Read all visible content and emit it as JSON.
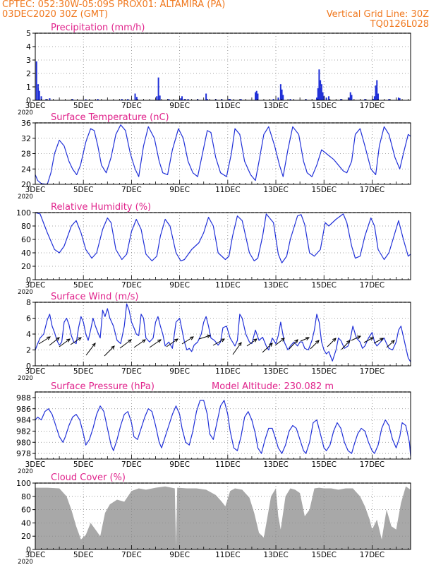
{
  "colors": {
    "header": "#f0781e",
    "panel_title": "#e0248c",
    "series": "#2030d8",
    "cloud": "#a8a8a8",
    "grid": "#888888",
    "frame": "#000000"
  },
  "header": {
    "left_line1": "CPTEC:   052:30W-05:09S   PROX01: ALTAMIRA (PA)",
    "left_line2": "03DEC2020 30Z (GMT)",
    "right_line1": "Vertical Grid Line: 30Z",
    "right_line2": "TQ0126L028"
  },
  "x_axis": {
    "day_start": 3,
    "day_end": 18.6,
    "ticks": [
      {
        "day": 3,
        "label": "3DEC"
      },
      {
        "day": 5,
        "label": "5DEC"
      },
      {
        "day": 7,
        "label": "7DEC"
      },
      {
        "day": 9,
        "label": "9DEC"
      },
      {
        "day": 11,
        "label": "11DEC"
      },
      {
        "day": 13,
        "label": "13DEC"
      },
      {
        "day": 15,
        "label": "15DEC"
      },
      {
        "day": 17,
        "label": "17DEC"
      }
    ],
    "year_label": "2020"
  },
  "chart_data": [
    {
      "type": "bar",
      "title": "Precipitation (mm/h)",
      "ylabel": "mm/h",
      "ylim": [
        0,
        5
      ],
      "yticks": [
        0,
        1,
        2,
        3,
        4,
        5
      ],
      "bars": [
        {
          "day": 3.05,
          "value": 2.9
        },
        {
          "day": 3.12,
          "value": 1.2
        },
        {
          "day": 3.17,
          "value": 0.7
        },
        {
          "day": 3.25,
          "value": 0.3
        },
        {
          "day": 3.45,
          "value": 0.1
        },
        {
          "day": 3.6,
          "value": 0.15
        },
        {
          "day": 4.55,
          "value": 0.1
        },
        {
          "day": 5.1,
          "value": 0.08
        },
        {
          "day": 5.6,
          "value": 0.1
        },
        {
          "day": 6.6,
          "value": 0.1
        },
        {
          "day": 6.85,
          "value": 0.1
        },
        {
          "day": 7.15,
          "value": 0.5
        },
        {
          "day": 7.22,
          "value": 0.25
        },
        {
          "day": 8.05,
          "value": 0.3
        },
        {
          "day": 8.12,
          "value": 1.7
        },
        {
          "day": 8.18,
          "value": 0.35
        },
        {
          "day": 8.55,
          "value": 0.1
        },
        {
          "day": 9.05,
          "value": 0.15
        },
        {
          "day": 9.1,
          "value": 0.3
        },
        {
          "day": 9.2,
          "value": 0.1
        },
        {
          "day": 9.35,
          "value": 0.1
        },
        {
          "day": 9.75,
          "value": 0.1
        },
        {
          "day": 10.1,
          "value": 0.5
        },
        {
          "day": 10.15,
          "value": 0.1
        },
        {
          "day": 10.5,
          "value": 0.1
        },
        {
          "day": 10.75,
          "value": 0.1
        },
        {
          "day": 11.05,
          "value": 0.1
        },
        {
          "day": 11.1,
          "value": 0.1
        },
        {
          "day": 11.55,
          "value": 0.1
        },
        {
          "day": 12.15,
          "value": 0.6
        },
        {
          "day": 12.2,
          "value": 0.7
        },
        {
          "day": 12.25,
          "value": 0.5
        },
        {
          "day": 12.9,
          "value": 0.1
        },
        {
          "day": 13.1,
          "value": 0.2
        },
        {
          "day": 13.2,
          "value": 1.2
        },
        {
          "day": 13.25,
          "value": 0.8
        },
        {
          "day": 13.3,
          "value": 0.4
        },
        {
          "day": 13.6,
          "value": 0.1
        },
        {
          "day": 14.25,
          "value": 0.1
        },
        {
          "day": 14.7,
          "value": 0.2
        },
        {
          "day": 14.75,
          "value": 0.9
        },
        {
          "day": 14.8,
          "value": 2.3
        },
        {
          "day": 14.85,
          "value": 1.5
        },
        {
          "day": 14.9,
          "value": 1.2
        },
        {
          "day": 14.95,
          "value": 0.6
        },
        {
          "day": 15.0,
          "value": 0.3
        },
        {
          "day": 15.1,
          "value": 0.2
        },
        {
          "day": 15.2,
          "value": 0.3
        },
        {
          "day": 15.7,
          "value": 0.1
        },
        {
          "day": 16.05,
          "value": 0.2
        },
        {
          "day": 16.1,
          "value": 0.6
        },
        {
          "day": 16.15,
          "value": 0.4
        },
        {
          "day": 16.7,
          "value": 0.1
        },
        {
          "day": 17.05,
          "value": 0.1
        },
        {
          "day": 17.1,
          "value": 0.3
        },
        {
          "day": 17.15,
          "value": 1.1
        },
        {
          "day": 17.2,
          "value": 1.5
        },
        {
          "day": 17.25,
          "value": 0.5
        },
        {
          "day": 17.7,
          "value": 0.1
        },
        {
          "day": 18.1,
          "value": 0.2
        },
        {
          "day": 18.15,
          "value": 0.15
        }
      ]
    },
    {
      "type": "line",
      "title": "Surface Temperature (nC)",
      "ylabel": "nC",
      "ylim": [
        20,
        36
      ],
      "yticks": [
        20,
        24,
        28,
        32,
        36
      ],
      "x": [
        3.0,
        3.1,
        3.25,
        3.5,
        3.65,
        3.8,
        4.0,
        4.2,
        4.4,
        4.55,
        4.72,
        4.88,
        5.1,
        5.3,
        5.45,
        5.6,
        5.75,
        5.95,
        6.15,
        6.35,
        6.55,
        6.75,
        6.95,
        7.15,
        7.3,
        7.5,
        7.7,
        7.95,
        8.15,
        8.3,
        8.5,
        8.7,
        8.95,
        9.15,
        9.35,
        9.55,
        9.75,
        9.95,
        10.15,
        10.3,
        10.5,
        10.7,
        10.95,
        11.15,
        11.3,
        11.5,
        11.7,
        11.95,
        12.15,
        12.3,
        12.5,
        12.7,
        12.95,
        13.15,
        13.3,
        13.5,
        13.7,
        13.95,
        14.15,
        14.3,
        14.5,
        14.7,
        14.9,
        15.0,
        15.2,
        15.4,
        15.6,
        15.8,
        15.95,
        16.15,
        16.3,
        16.5,
        16.7,
        16.95,
        17.15,
        17.3,
        17.5,
        17.7,
        17.95,
        18.15,
        18.3,
        18.5,
        18.6
      ],
      "values": [
        22.5,
        21.0,
        20.2,
        20.0,
        23.0,
        28.0,
        31.5,
        30.0,
        26.0,
        24.0,
        22.5,
        25.0,
        31.0,
        34.5,
        34.0,
        30.0,
        25.0,
        23.0,
        27.0,
        33.0,
        35.5,
        34.0,
        28.0,
        24.0,
        22.0,
        30.0,
        35.0,
        32.0,
        26.0,
        23.0,
        22.5,
        29.0,
        34.5,
        32.0,
        26.0,
        23.0,
        22.0,
        28.0,
        34.0,
        33.5,
        27.0,
        23.0,
        22.0,
        28.0,
        34.5,
        33.0,
        26.0,
        22.5,
        21.0,
        26.0,
        33.0,
        35.0,
        30.0,
        25.0,
        22.0,
        29.0,
        35.0,
        33.0,
        26.0,
        23.0,
        22.0,
        25.0,
        29.0,
        28.5,
        27.5,
        26.5,
        25.0,
        23.5,
        23.0,
        26.0,
        33.0,
        34.5,
        30.0,
        24.0,
        22.5,
        30.0,
        35.0,
        33.0,
        27.0,
        24.0,
        28.0,
        33.0,
        32.5
      ]
    },
    {
      "type": "line",
      "title": "Relative Humidity (%)",
      "ylabel": "%",
      "ylim": [
        0,
        100
      ],
      "yticks": [
        0,
        20,
        40,
        60,
        80,
        100
      ],
      "x": [
        3.0,
        3.2,
        3.5,
        3.8,
        4.0,
        4.2,
        4.5,
        4.7,
        4.9,
        5.1,
        5.35,
        5.55,
        5.8,
        6.0,
        6.15,
        6.35,
        6.6,
        6.8,
        7.0,
        7.2,
        7.4,
        7.6,
        7.85,
        8.05,
        8.2,
        8.4,
        8.6,
        8.85,
        9.05,
        9.2,
        9.5,
        9.8,
        10.0,
        10.2,
        10.4,
        10.6,
        10.9,
        11.05,
        11.2,
        11.4,
        11.6,
        11.9,
        12.1,
        12.25,
        12.45,
        12.6,
        12.9,
        13.1,
        13.25,
        13.45,
        13.6,
        13.9,
        14.05,
        14.2,
        14.4,
        14.6,
        14.85,
        15.05,
        15.2,
        15.5,
        15.8,
        15.95,
        16.15,
        16.3,
        16.5,
        16.7,
        16.95,
        17.1,
        17.25,
        17.5,
        17.7,
        17.95,
        18.1,
        18.3,
        18.5,
        18.6
      ],
      "values": [
        100,
        98,
        70,
        45,
        40,
        50,
        80,
        88,
        70,
        45,
        32,
        40,
        75,
        92,
        85,
        45,
        30,
        38,
        72,
        90,
        75,
        38,
        28,
        35,
        65,
        90,
        80,
        40,
        28,
        30,
        45,
        55,
        70,
        93,
        80,
        40,
        30,
        35,
        65,
        95,
        88,
        40,
        28,
        32,
        65,
        98,
        85,
        38,
        25,
        35,
        60,
        95,
        97,
        82,
        40,
        35,
        45,
        85,
        80,
        90,
        98,
        85,
        50,
        32,
        35,
        65,
        92,
        80,
        45,
        30,
        40,
        70,
        88,
        60,
        35,
        38
      ]
    },
    {
      "type": "line",
      "title": "Surface Wind (m/s)",
      "ylabel": "m/s",
      "ylim": [
        0,
        8
      ],
      "yticks": [
        0,
        2,
        4,
        6,
        8
      ],
      "x": [
        3.0,
        3.1,
        3.2,
        3.35,
        3.5,
        3.6,
        3.7,
        3.8,
        3.9,
        4.0,
        4.1,
        4.2,
        4.3,
        4.4,
        4.5,
        4.6,
        4.7,
        4.8,
        4.9,
        5.0,
        5.1,
        5.2,
        5.3,
        5.4,
        5.5,
        5.6,
        5.7,
        5.8,
        5.9,
        6.0,
        6.1,
        6.25,
        6.4,
        6.55,
        6.7,
        6.8,
        6.9,
        7.0,
        7.1,
        7.2,
        7.3,
        7.4,
        7.5,
        7.6,
        7.75,
        7.9,
        8.0,
        8.1,
        8.2,
        8.3,
        8.4,
        8.55,
        8.7,
        8.85,
        9.0,
        9.1,
        9.2,
        9.3,
        9.4,
        9.5,
        9.6,
        9.75,
        9.9,
        10.0,
        10.1,
        10.2,
        10.3,
        10.45,
        10.6,
        10.7,
        10.8,
        10.95,
        11.1,
        11.2,
        11.3,
        11.4,
        11.5,
        11.6,
        11.75,
        11.9,
        12.0,
        12.15,
        12.3,
        12.45,
        12.6,
        12.7,
        12.85,
        13.0,
        13.1,
        13.2,
        13.35,
        13.5,
        13.6,
        13.75,
        13.9,
        14.0,
        14.1,
        14.2,
        14.35,
        14.5,
        14.6,
        14.7,
        14.8,
        14.9,
        15.0,
        15.1,
        15.2,
        15.35,
        15.5,
        15.6,
        15.7,
        15.85,
        16.0,
        16.1,
        16.2,
        16.35,
        16.5,
        16.6,
        16.7,
        16.85,
        17.0,
        17.1,
        17.2,
        17.35,
        17.5,
        17.6,
        17.7,
        17.85,
        18.0,
        18.1,
        18.2,
        18.35,
        18.5,
        18.6
      ],
      "values": [
        2.0,
        2.8,
        3.5,
        4.0,
        5.8,
        6.5,
        5.0,
        4.2,
        3.2,
        2.6,
        3.0,
        5.5,
        6.0,
        5.2,
        3.8,
        3.0,
        2.8,
        4.8,
        6.2,
        5.5,
        4.0,
        3.2,
        4.5,
        6.0,
        5.0,
        4.2,
        3.5,
        7.0,
        6.2,
        7.2,
        6.0,
        5.0,
        3.2,
        2.8,
        5.0,
        7.8,
        7.0,
        5.5,
        4.8,
        4.0,
        3.8,
        6.5,
        6.0,
        3.5,
        3.0,
        3.5,
        5.5,
        6.2,
        5.0,
        4.0,
        2.5,
        3.0,
        2.2,
        5.5,
        6.0,
        4.5,
        3.0,
        2.0,
        2.2,
        1.8,
        2.6,
        3.0,
        4.0,
        5.5,
        6.2,
        5.0,
        3.5,
        3.2,
        2.6,
        3.0,
        4.8,
        5.0,
        3.5,
        3.0,
        2.5,
        3.2,
        6.5,
        6.0,
        4.0,
        3.0,
        2.8,
        4.5,
        3.2,
        3.6,
        2.5,
        2.0,
        3.5,
        2.8,
        3.8,
        5.5,
        3.0,
        2.0,
        2.5,
        3.0,
        2.5,
        3.0,
        3.0,
        2.2,
        2.0,
        3.2,
        4.5,
        6.5,
        5.5,
        3.0,
        2.0,
        1.5,
        1.8,
        0.6,
        2.0,
        3.5,
        3.2,
        2.2,
        2.5,
        3.5,
        5.0,
        3.5,
        3.0,
        2.2,
        2.5,
        3.5,
        4.2,
        3.0,
        2.5,
        3.0,
        3.5,
        2.8,
        2.2,
        2.0,
        3.0,
        4.5,
        5.0,
        3.0,
        1.0,
        0.5
      ]
    },
    {
      "type": "line",
      "title": "Surface Pressure (hPa)",
      "subtitle": "Model Altitude: 230.082 m",
      "ylabel": "hPa",
      "ylim": [
        977,
        989
      ],
      "yticks": [
        978,
        980,
        982,
        984,
        986,
        988
      ],
      "x": [
        3.0,
        3.1,
        3.25,
        3.4,
        3.55,
        3.7,
        3.85,
        4.0,
        4.15,
        4.25,
        4.4,
        4.55,
        4.7,
        4.85,
        5.0,
        5.1,
        5.25,
        5.4,
        5.55,
        5.7,
        5.85,
        6.0,
        6.15,
        6.25,
        6.4,
        6.55,
        6.7,
        6.85,
        7.0,
        7.1,
        7.25,
        7.4,
        7.55,
        7.7,
        7.85,
        8.0,
        8.15,
        8.25,
        8.4,
        8.55,
        8.7,
        8.85,
        9.0,
        9.1,
        9.25,
        9.4,
        9.55,
        9.7,
        9.85,
        10.0,
        10.15,
        10.25,
        10.4,
        10.55,
        10.7,
        10.85,
        11.0,
        11.1,
        11.25,
        11.4,
        11.55,
        11.7,
        11.85,
        12.0,
        12.15,
        12.25,
        12.4,
        12.55,
        12.7,
        12.85,
        13.0,
        13.1,
        13.25,
        13.4,
        13.55,
        13.7,
        13.85,
        14.0,
        14.15,
        14.25,
        14.4,
        14.55,
        14.7,
        14.85,
        15.0,
        15.1,
        15.25,
        15.4,
        15.55,
        15.7,
        15.85,
        16.0,
        16.15,
        16.25,
        16.4,
        16.55,
        16.7,
        16.85,
        17.0,
        17.1,
        17.25,
        17.4,
        17.55,
        17.7,
        17.85,
        18.0,
        18.15,
        18.25,
        18.4,
        18.55,
        18.6
      ],
      "values": [
        984.0,
        984.5,
        984.0,
        985.5,
        986.0,
        985.0,
        983.0,
        981.0,
        980.0,
        981.0,
        983.0,
        984.5,
        985.0,
        984.0,
        981.5,
        979.5,
        980.5,
        982.5,
        985.0,
        986.5,
        985.5,
        982.5,
        979.5,
        978.5,
        980.5,
        983.0,
        985.0,
        985.5,
        983.5,
        981.0,
        980.5,
        982.5,
        984.5,
        986.0,
        985.5,
        983.0,
        980.0,
        979.0,
        981.0,
        983.0,
        985.0,
        986.5,
        985.0,
        982.5,
        980.0,
        979.5,
        982.0,
        985.5,
        987.5,
        987.5,
        985.0,
        981.5,
        980.5,
        983.5,
        986.5,
        987.5,
        985.0,
        982.0,
        979.0,
        978.5,
        981.0,
        984.5,
        985.5,
        984.0,
        981.5,
        979.0,
        978.0,
        980.5,
        982.5,
        982.5,
        980.5,
        979.0,
        978.0,
        979.5,
        982.0,
        983.0,
        982.5,
        980.5,
        978.5,
        978.0,
        980.0,
        983.5,
        984.0,
        981.5,
        979.0,
        978.5,
        979.5,
        982.0,
        983.5,
        982.5,
        980.0,
        978.5,
        978.0,
        979.5,
        981.5,
        982.5,
        982.0,
        980.0,
        978.5,
        978.0,
        979.5,
        982.5,
        984.0,
        983.0,
        980.5,
        979.0,
        981.0,
        983.5,
        983.0,
        980.0,
        977.5
      ]
    },
    {
      "type": "area",
      "title": "Cloud Cover (%)",
      "ylabel": "%",
      "ylim": [
        0,
        100
      ],
      "yticks": [
        0,
        20,
        40,
        60,
        80,
        100
      ],
      "x": [
        3.0,
        3.5,
        4.0,
        4.3,
        4.5,
        4.7,
        4.9,
        5.1,
        5.3,
        5.5,
        5.7,
        5.9,
        6.1,
        6.4,
        6.7,
        7.0,
        7.3,
        7.6,
        8.0,
        8.4,
        8.8,
        8.85,
        8.9,
        9.3,
        9.7,
        10.1,
        10.5,
        10.6,
        10.75,
        10.9,
        11.1,
        11.3,
        11.6,
        11.9,
        12.1,
        12.3,
        12.5,
        12.8,
        13.0,
        13.1,
        13.2,
        13.4,
        13.6,
        13.8,
        14.0,
        14.2,
        14.4,
        14.6,
        14.8,
        15.0,
        15.3,
        15.6,
        15.9,
        16.2,
        16.5,
        16.7,
        16.9,
        17.0,
        17.2,
        17.4,
        17.6,
        17.8,
        18.0,
        18.2,
        18.4,
        18.6
      ],
      "values": [
        93,
        93,
        92,
        80,
        60,
        35,
        15,
        22,
        40,
        30,
        20,
        55,
        68,
        75,
        72,
        88,
        92,
        90,
        93,
        95,
        92,
        5,
        93,
        92,
        92,
        90,
        82,
        78,
        72,
        65,
        88,
        92,
        90,
        78,
        55,
        25,
        18,
        80,
        92,
        50,
        30,
        80,
        92,
        90,
        85,
        50,
        60,
        92,
        93,
        92,
        92,
        90,
        92,
        92,
        80,
        65,
        45,
        30,
        45,
        15,
        60,
        35,
        30,
        70,
        95,
        90
      ]
    }
  ]
}
